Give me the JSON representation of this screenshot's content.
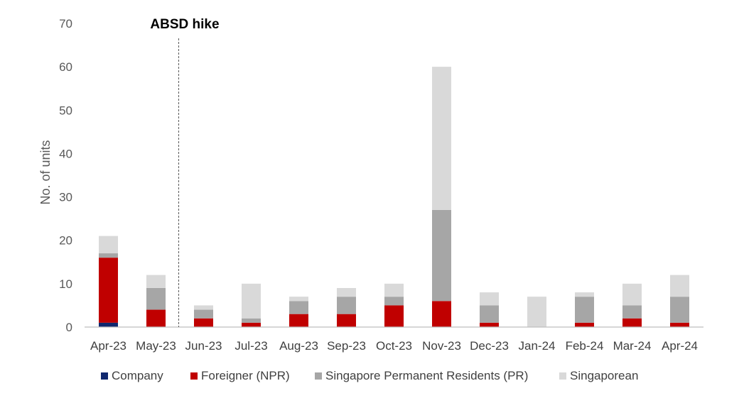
{
  "chart_data": {
    "type": "bar",
    "stacked": true,
    "title": "",
    "xlabel": "",
    "ylabel": "No. of units",
    "ylim": [
      0,
      70
    ],
    "yticks": [
      0,
      10,
      20,
      30,
      40,
      50,
      60,
      70
    ],
    "grid": false,
    "legend_position": "bottom",
    "categories": [
      "Apr-23",
      "May-23",
      "Jun-23",
      "Jul-23",
      "Aug-23",
      "Sep-23",
      "Oct-23",
      "Nov-23",
      "Dec-23",
      "Jan-24",
      "Feb-24",
      "Mar-24",
      "Apr-24"
    ],
    "series": [
      {
        "name": "Company",
        "color": "#10286e",
        "values": [
          1,
          0,
          0,
          0,
          0,
          0,
          0,
          0,
          0,
          0,
          0,
          0,
          0
        ]
      },
      {
        "name": "Foreigner (NPR)",
        "color": "#c00000",
        "values": [
          15,
          4,
          2,
          1,
          3,
          3,
          5,
          6,
          1,
          0,
          1,
          2,
          1
        ]
      },
      {
        "name": "Singapore Permanent Residents (PR)",
        "color": "#a6a6a6",
        "values": [
          1,
          5,
          2,
          1,
          3,
          4,
          2,
          21,
          4,
          0,
          6,
          3,
          6
        ]
      },
      {
        "name": "Singaporean",
        "color": "#d9d9d9",
        "values": [
          4,
          3,
          1,
          8,
          1,
          2,
          3,
          33,
          3,
          7,
          1,
          5,
          5
        ]
      }
    ],
    "annotations": [
      {
        "text": "ABSD hike",
        "between": [
          "May-23",
          "Jun-23"
        ],
        "style": "dashed-vertical-line"
      }
    ]
  }
}
